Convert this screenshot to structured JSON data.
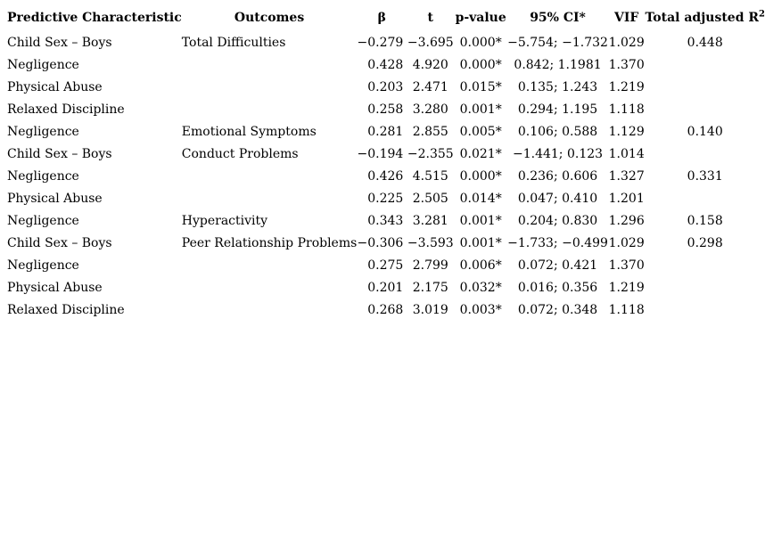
{
  "table": {
    "header": {
      "predictor": "Predictive Characteristic",
      "outcome": "Outcomes",
      "beta": "β",
      "t": "t",
      "p": "p-value",
      "ci": "95% CI*",
      "vif": "VIF",
      "r2_base": "Total adjusted R",
      "r2_sup": "2"
    },
    "rows": [
      {
        "predictor": "Child Sex – Boys",
        "outcome": "Total Difficulties",
        "beta": "−0.279",
        "t": "−3.695",
        "p": "0.000*",
        "ci": "−5.754; −1.732",
        "vif": "1.029",
        "r2": "0.448"
      },
      {
        "predictor": "Negligence",
        "outcome": "",
        "beta": "0.428",
        "t": "4.920",
        "p": "0.000*",
        "ci": "0.842; 1.1981",
        "vif": "1.370",
        "r2": ""
      },
      {
        "predictor": "Physical Abuse",
        "outcome": "",
        "beta": "0.203",
        "t": "2.471",
        "p": "0.015*",
        "ci": "0.135; 1.243",
        "vif": "1.219",
        "r2": ""
      },
      {
        "predictor": "Relaxed Discipline",
        "outcome": "",
        "beta": "0.258",
        "t": "3.280",
        "p": "0.001*",
        "ci": "0.294; 1.195",
        "vif": "1.118",
        "r2": ""
      },
      {
        "predictor": "Negligence",
        "outcome": "Emotional Symptoms",
        "beta": "0.281",
        "t": "2.855",
        "p": "0.005*",
        "ci": "0.106; 0.588",
        "vif": "1.129",
        "r2": "0.140"
      },
      {
        "predictor": "Child Sex – Boys",
        "outcome": "Conduct Problems",
        "beta": "−0.194",
        "t": "−2.355",
        "p": "0.021*",
        "ci": "−1.441; 0.123",
        "vif": "1.014",
        "r2": ""
      },
      {
        "predictor": "Negligence",
        "outcome": "",
        "beta": "0.426",
        "t": "4.515",
        "p": "0.000*",
        "ci": "0.236; 0.606",
        "vif": "1.327",
        "r2": "0.331"
      },
      {
        "predictor": "Physical Abuse",
        "outcome": "",
        "beta": "0.225",
        "t": "2.505",
        "p": "0.014*",
        "ci": "0.047; 0.410",
        "vif": "1.201",
        "r2": ""
      },
      {
        "predictor": "Negligence",
        "outcome": "Hyperactivity",
        "beta": "0.343",
        "t": "3.281",
        "p": "0.001*",
        "ci": "0.204; 0.830",
        "vif": "1.296",
        "r2": "0.158"
      },
      {
        "predictor": "Child Sex – Boys",
        "outcome": "Peer Relationship Problems",
        "beta": "−0.306",
        "t": "−3.593",
        "p": "0.001*",
        "ci": "−1.733; −0.499",
        "vif": "1.029",
        "r2": "0.298"
      },
      {
        "predictor": "Negligence",
        "outcome": "",
        "beta": "0.275",
        "t": "2.799",
        "p": "0.006*",
        "ci": "0.072; 0.421",
        "vif": "1.370",
        "r2": ""
      },
      {
        "predictor": "Physical Abuse",
        "outcome": "",
        "beta": "0.201",
        "t": "2.175",
        "p": "0.032*",
        "ci": "0.016; 0.356",
        "vif": "1.219",
        "r2": ""
      },
      {
        "predictor": "Relaxed Discipline",
        "outcome": "",
        "beta": "0.268",
        "t": "3.019",
        "p": "0.003*",
        "ci": "0.072; 0.348",
        "vif": "1.118",
        "r2": ""
      }
    ]
  }
}
